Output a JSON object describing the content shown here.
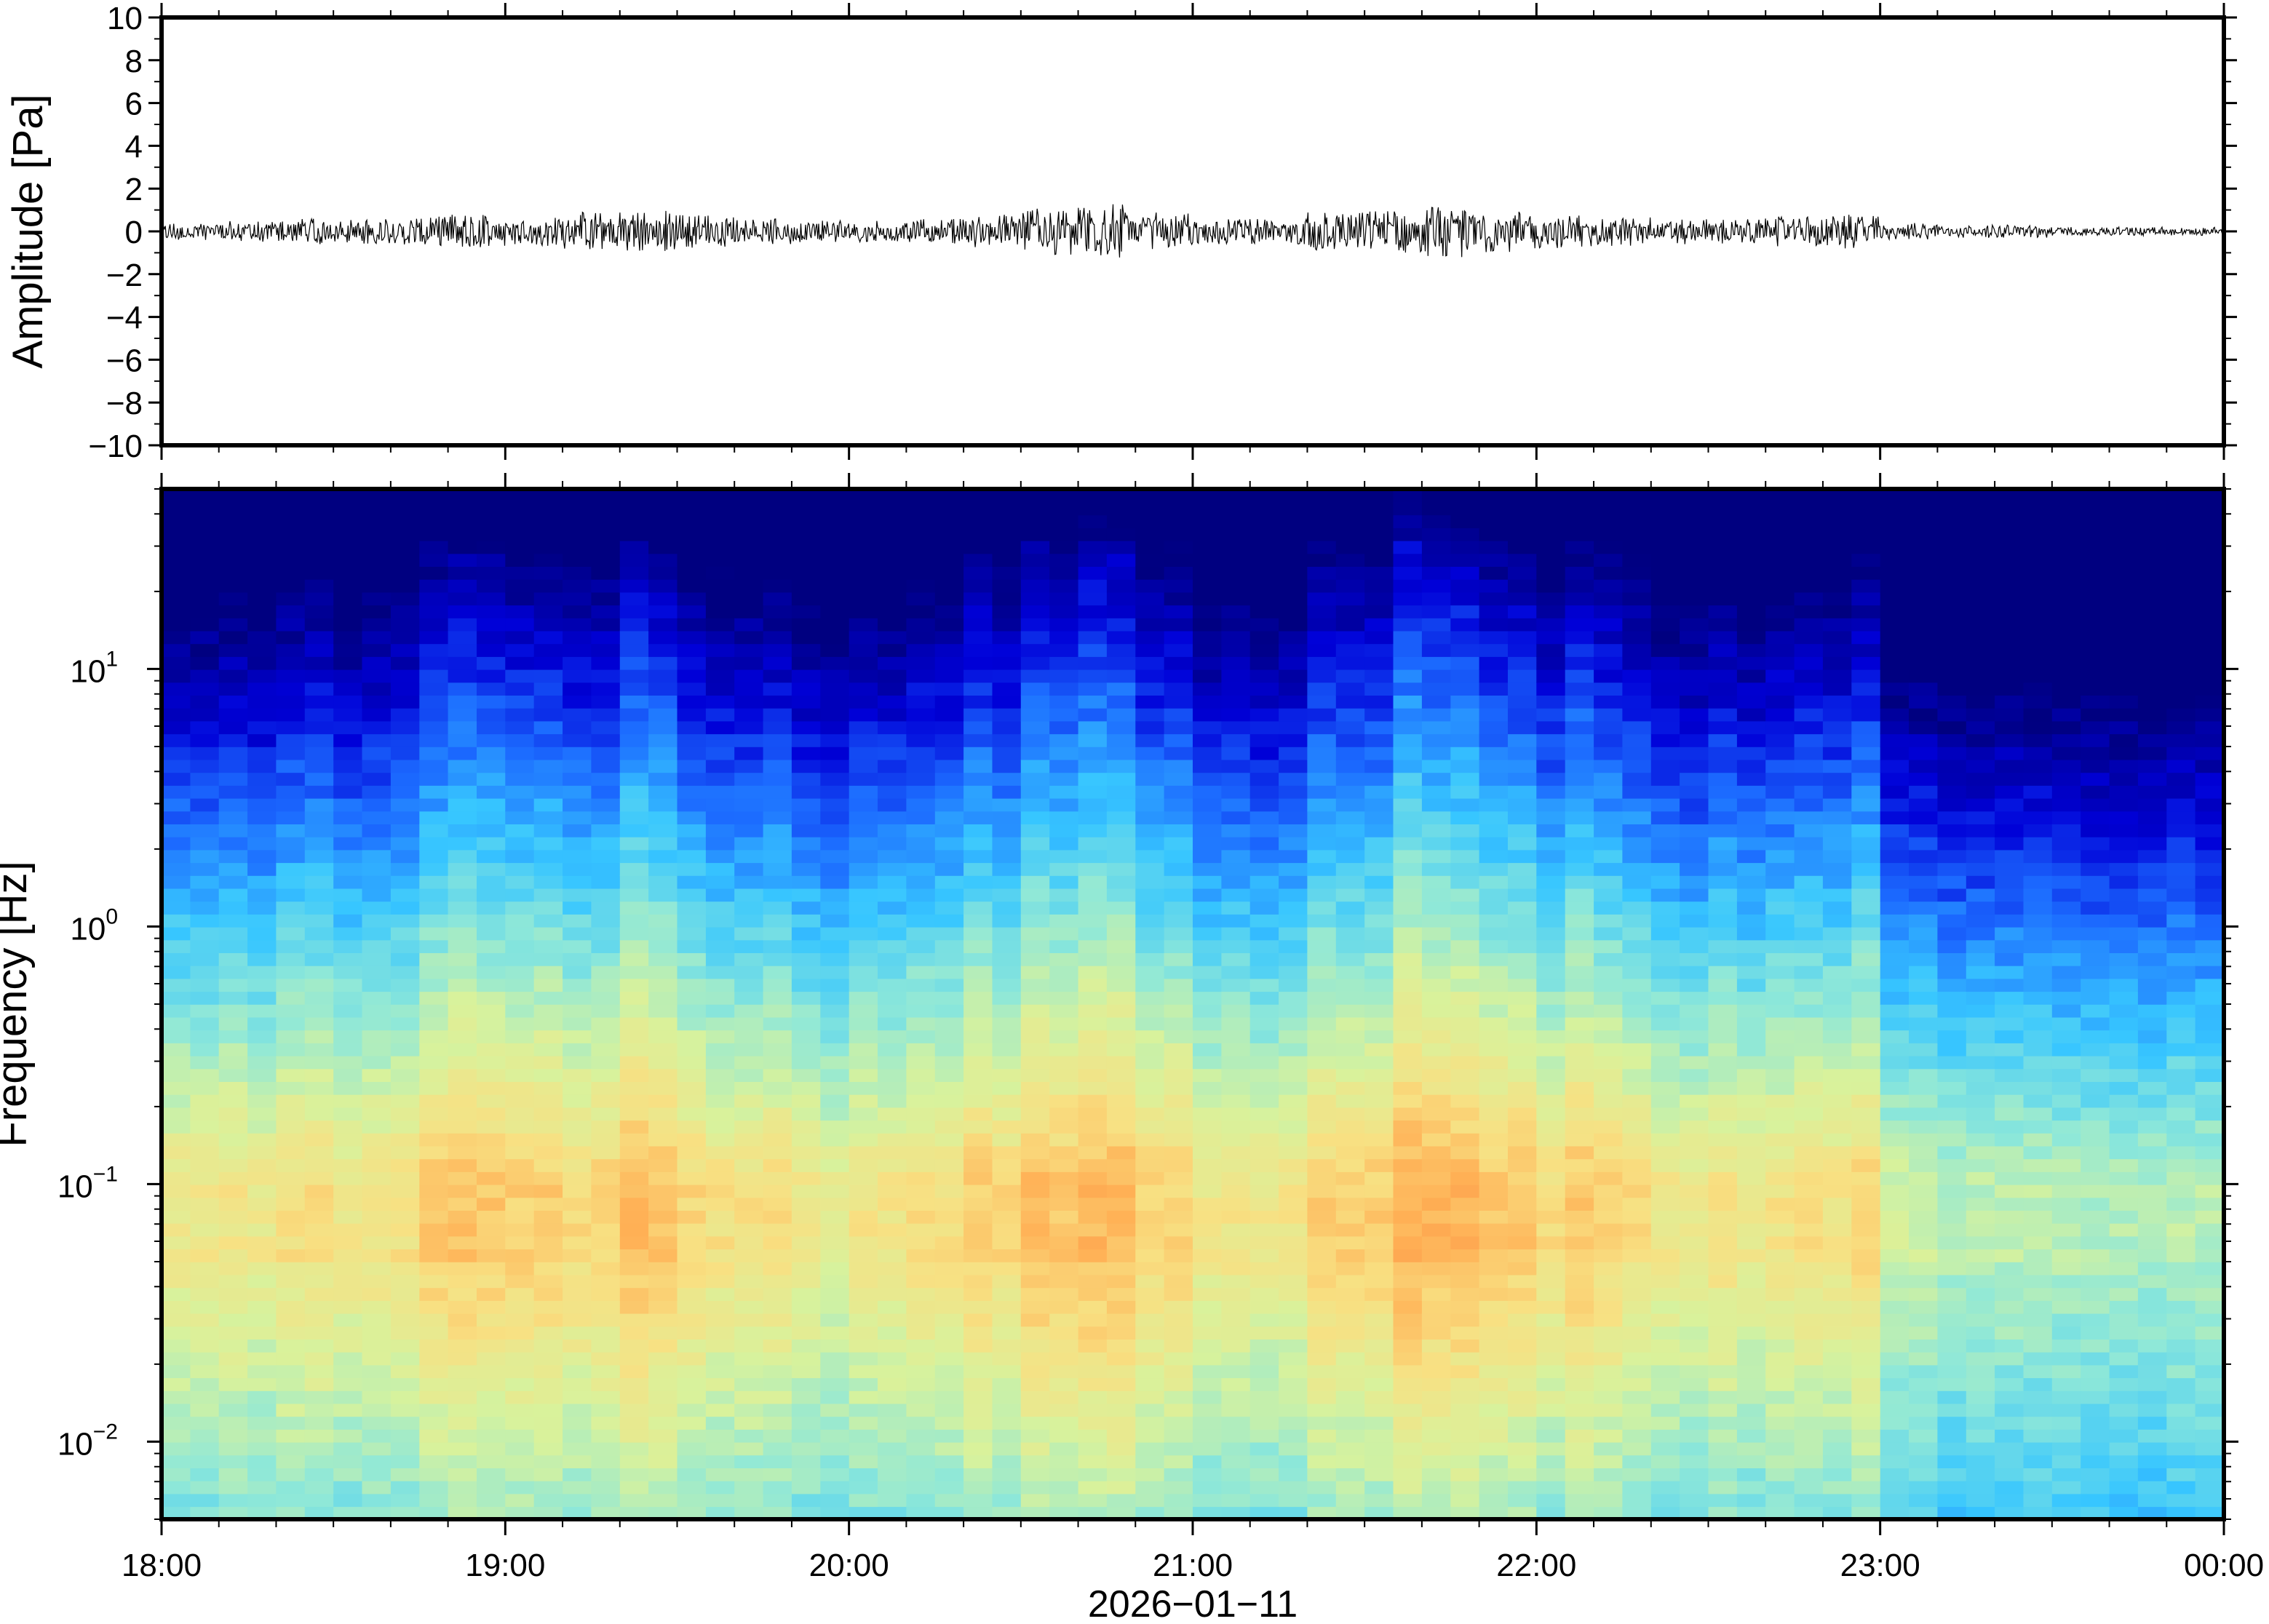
{
  "chart_data": [
    {
      "type": "line",
      "panel": "waveform",
      "ylabel": "Amplitude [Pa]",
      "ylim": [
        -10,
        10
      ],
      "yticks": [
        10,
        8,
        6,
        4,
        2,
        0,
        -2,
        -4,
        -6,
        -8,
        -10
      ],
      "ytick_labels": [
        "10",
        "8",
        "6",
        "4",
        "2",
        "0",
        "−2",
        "−4",
        "−6",
        "−8",
        "−10"
      ],
      "xlim": [
        "18:00",
        "00:00"
      ],
      "series": [
        {
          "description_of_envelope": "peak absolute amplitude (Pa) per 10-minute block, 18:00–00:00",
          "values": [
            0.4,
            0.5,
            0.6,
            0.6,
            0.7,
            0.8,
            0.7,
            0.9,
            1.0,
            0.8,
            0.6,
            0.5,
            0.5,
            0.6,
            0.8,
            1.1,
            1.3,
            0.9,
            0.6,
            0.6,
            0.9,
            1.0,
            1.2,
            1.0,
            0.8,
            0.7,
            0.6,
            0.6,
            0.7,
            0.8,
            0.4,
            0.3,
            0.3,
            0.2,
            0.2,
            0.2
          ]
        }
      ]
    },
    {
      "type": "heatmap",
      "panel": "spectrogram",
      "ylabel": "Frequency [Hz]",
      "yscale": "log",
      "ylim": [
        0.005,
        50
      ],
      "yticks": [
        0.01,
        0.1,
        1,
        10
      ],
      "ytick_labels": [
        {
          "base": "10",
          "exp": "−2"
        },
        {
          "base": "10",
          "exp": "−1"
        },
        {
          "base": "10",
          "exp": "0"
        },
        {
          "base": "10",
          "exp": "1"
        }
      ],
      "xlabel": "2026−01−11",
      "xticks": [
        "18:00",
        "19:00",
        "20:00",
        "21:00",
        "22:00",
        "23:00",
        "00:00"
      ],
      "colormap": "jet",
      "colors": [
        "#000080",
        "#0000d8",
        "#1c6bff",
        "#37c6ff",
        "#8fe8d8",
        "#d8f29c",
        "#f8e082",
        "#ffb055",
        "#f46a35"
      ],
      "activity": [
        0.55,
        0.6,
        0.65,
        0.6,
        0.7,
        0.75,
        0.7,
        0.75,
        0.8,
        0.7,
        0.6,
        0.55,
        0.55,
        0.6,
        0.7,
        0.85,
        0.9,
        0.75,
        0.6,
        0.6,
        0.8,
        0.85,
        0.9,
        0.85,
        0.75,
        0.7,
        0.6,
        0.6,
        0.65,
        0.7,
        0.35,
        0.3,
        0.28,
        0.25,
        0.25,
        0.25
      ],
      "time_bins_per_hour": 12,
      "note_power": "relative power (0 low – 1 high)"
    }
  ]
}
